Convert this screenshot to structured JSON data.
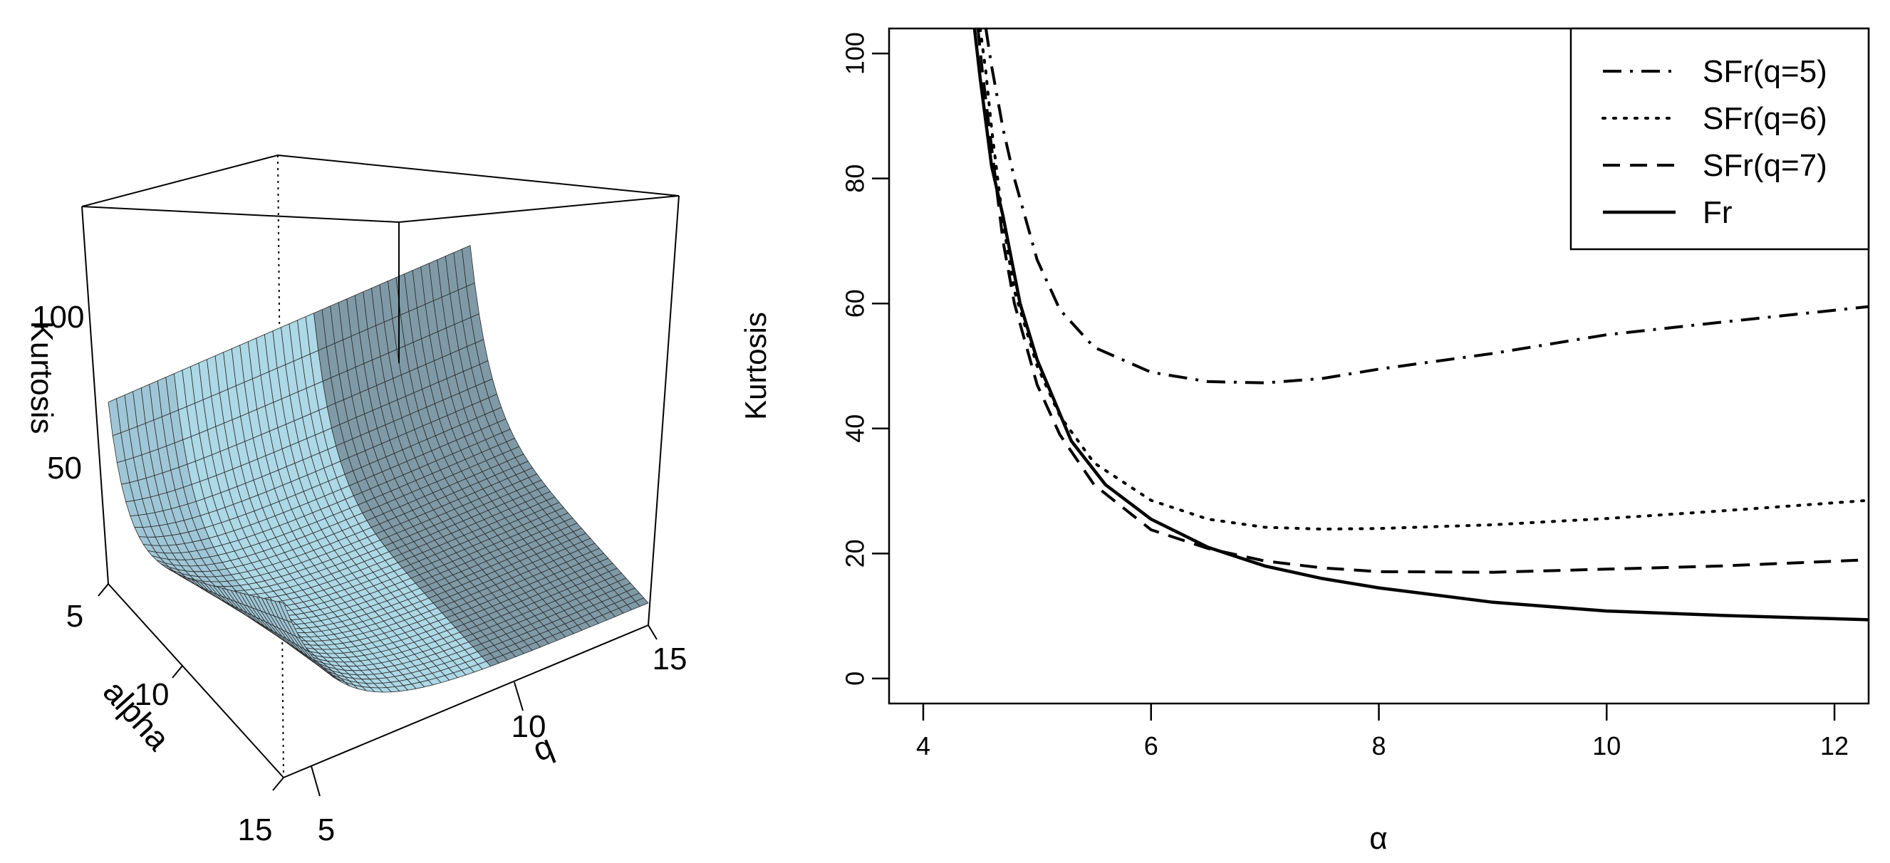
{
  "chart_data": [
    {
      "type": "surface",
      "title": "",
      "axis_labels": {
        "x": "alpha",
        "y": "q",
        "z": "Kurtosis"
      },
      "x_ticks": [
        "5",
        "10",
        "15"
      ],
      "y_ticks": [
        "5",
        "10",
        "15"
      ],
      "z_ticks": [
        "50",
        "100"
      ],
      "x_range": [
        4.5,
        15
      ],
      "y_range": [
        5,
        15
      ],
      "z_range": [
        0,
        135
      ],
      "surface_color": "#add8e6",
      "mesh_color": "#2a2a2a"
    },
    {
      "type": "line",
      "title": "",
      "xlabel": "α",
      "ylabel": "Kurtosis",
      "xlim": [
        3.7,
        12.3
      ],
      "ylim": [
        -4,
        104
      ],
      "x_ticks": [
        "4",
        "6",
        "8",
        "10",
        "12"
      ],
      "y_ticks": [
        "0",
        "20",
        "40",
        "60",
        "80",
        "100"
      ],
      "legend_position": "top-right",
      "grid": false,
      "series": [
        {
          "name": "SFr(q=5)",
          "style": "dashdot",
          "x": [
            4.55,
            4.6,
            4.7,
            4.8,
            5.0,
            5.2,
            5.5,
            6.0,
            6.5,
            7.0,
            7.5,
            8.0,
            9.0,
            10.0,
            11.0,
            12.3
          ],
          "y": [
            104,
            98,
            88,
            80,
            67,
            59,
            53,
            49,
            47.5,
            47.3,
            48,
            49.5,
            52,
            55,
            57,
            59.5
          ]
        },
        {
          "name": "SFr(q=6)",
          "style": "dotted",
          "x": [
            4.5,
            4.55,
            4.6,
            4.7,
            4.8,
            5.0,
            5.2,
            5.5,
            6.0,
            6.5,
            7.0,
            7.5,
            8.0,
            9.0,
            10.0,
            11.0,
            12.3
          ],
          "y": [
            104,
            97,
            88,
            73,
            62,
            50,
            42,
            34.5,
            28.5,
            25.5,
            24.2,
            23.9,
            24,
            24.6,
            25.6,
            26.8,
            28.5
          ]
        },
        {
          "name": "SFr(q=7)",
          "style": "dashed",
          "x": [
            4.48,
            4.52,
            4.6,
            4.7,
            4.8,
            5.0,
            5.2,
            5.5,
            6.0,
            6.5,
            7.0,
            7.5,
            8.0,
            9.0,
            10.0,
            11.0,
            12.3
          ],
          "y": [
            104,
            97,
            85,
            70,
            60,
            47,
            39,
            31,
            23.8,
            20.8,
            18.8,
            17.7,
            17.1,
            17,
            17.5,
            18,
            19
          ]
        },
        {
          "name": "Fr",
          "style": "solid",
          "x": [
            4.45,
            4.5,
            4.55,
            4.6,
            4.7,
            4.85,
            5.0,
            5.3,
            5.6,
            6.0,
            6.5,
            7.0,
            7.5,
            8.0,
            9.0,
            10.0,
            11.0,
            12.3
          ],
          "y": [
            104,
            96,
            89,
            82,
            74,
            60,
            51,
            38,
            31,
            25.5,
            21,
            18,
            16,
            14.5,
            12.2,
            10.8,
            10.1,
            9.4
          ]
        }
      ]
    }
  ]
}
